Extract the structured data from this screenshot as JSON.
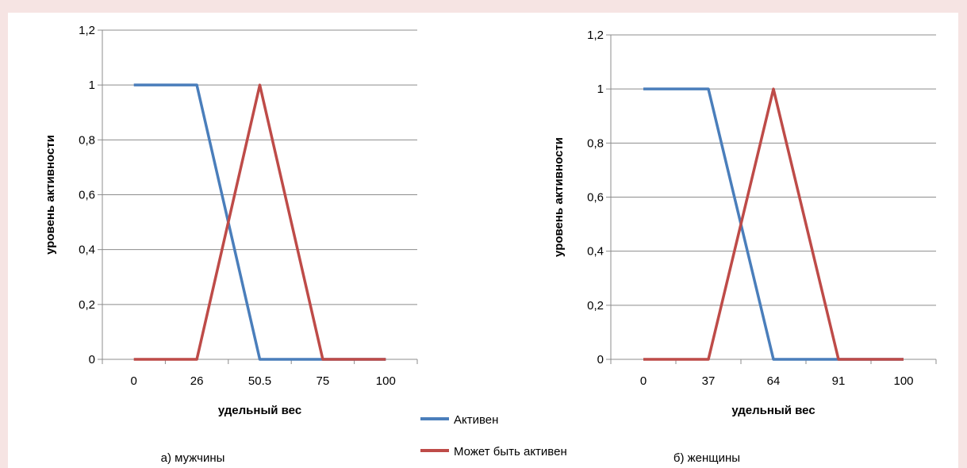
{
  "legend": [
    {
      "label": "Активен",
      "color": "#4a7ebb"
    },
    {
      "label": "Может быть активен",
      "color": "#be4b48"
    }
  ],
  "chart_data": [
    {
      "type": "line",
      "caption": "а) мужчины",
      "xlabel": "удельный вес",
      "ylabel": "уровень активности",
      "categories": [
        "0",
        "26",
        "50.5",
        "75",
        "100"
      ],
      "ylim": [
        0,
        1.2
      ],
      "yticks": [
        "0",
        "0,2",
        "0,4",
        "0,6",
        "0,8",
        "1",
        "1,2"
      ],
      "series": [
        {
          "name": "Активен",
          "color": "#4a7ebb",
          "values": [
            1,
            1,
            0,
            0,
            0
          ]
        },
        {
          "name": "Может быть активен",
          "color": "#be4b48",
          "values": [
            0,
            0,
            1,
            0,
            0
          ]
        }
      ],
      "grid": true
    },
    {
      "type": "line",
      "caption": "б) женщины",
      "xlabel": "удельный вес",
      "ylabel": "уровень активности",
      "categories": [
        "0",
        "37",
        "64",
        "91",
        "100"
      ],
      "ylim": [
        0,
        1.2
      ],
      "yticks": [
        "0",
        "0,2",
        "0,4",
        "0,6",
        "0,8",
        "1",
        "1,2"
      ],
      "series": [
        {
          "name": "Активен",
          "color": "#4a7ebb",
          "values": [
            1,
            1,
            0,
            0,
            0
          ]
        },
        {
          "name": "Может быть активен",
          "color": "#be4b48",
          "values": [
            0,
            0,
            1,
            0,
            0
          ]
        }
      ],
      "grid": true
    }
  ]
}
